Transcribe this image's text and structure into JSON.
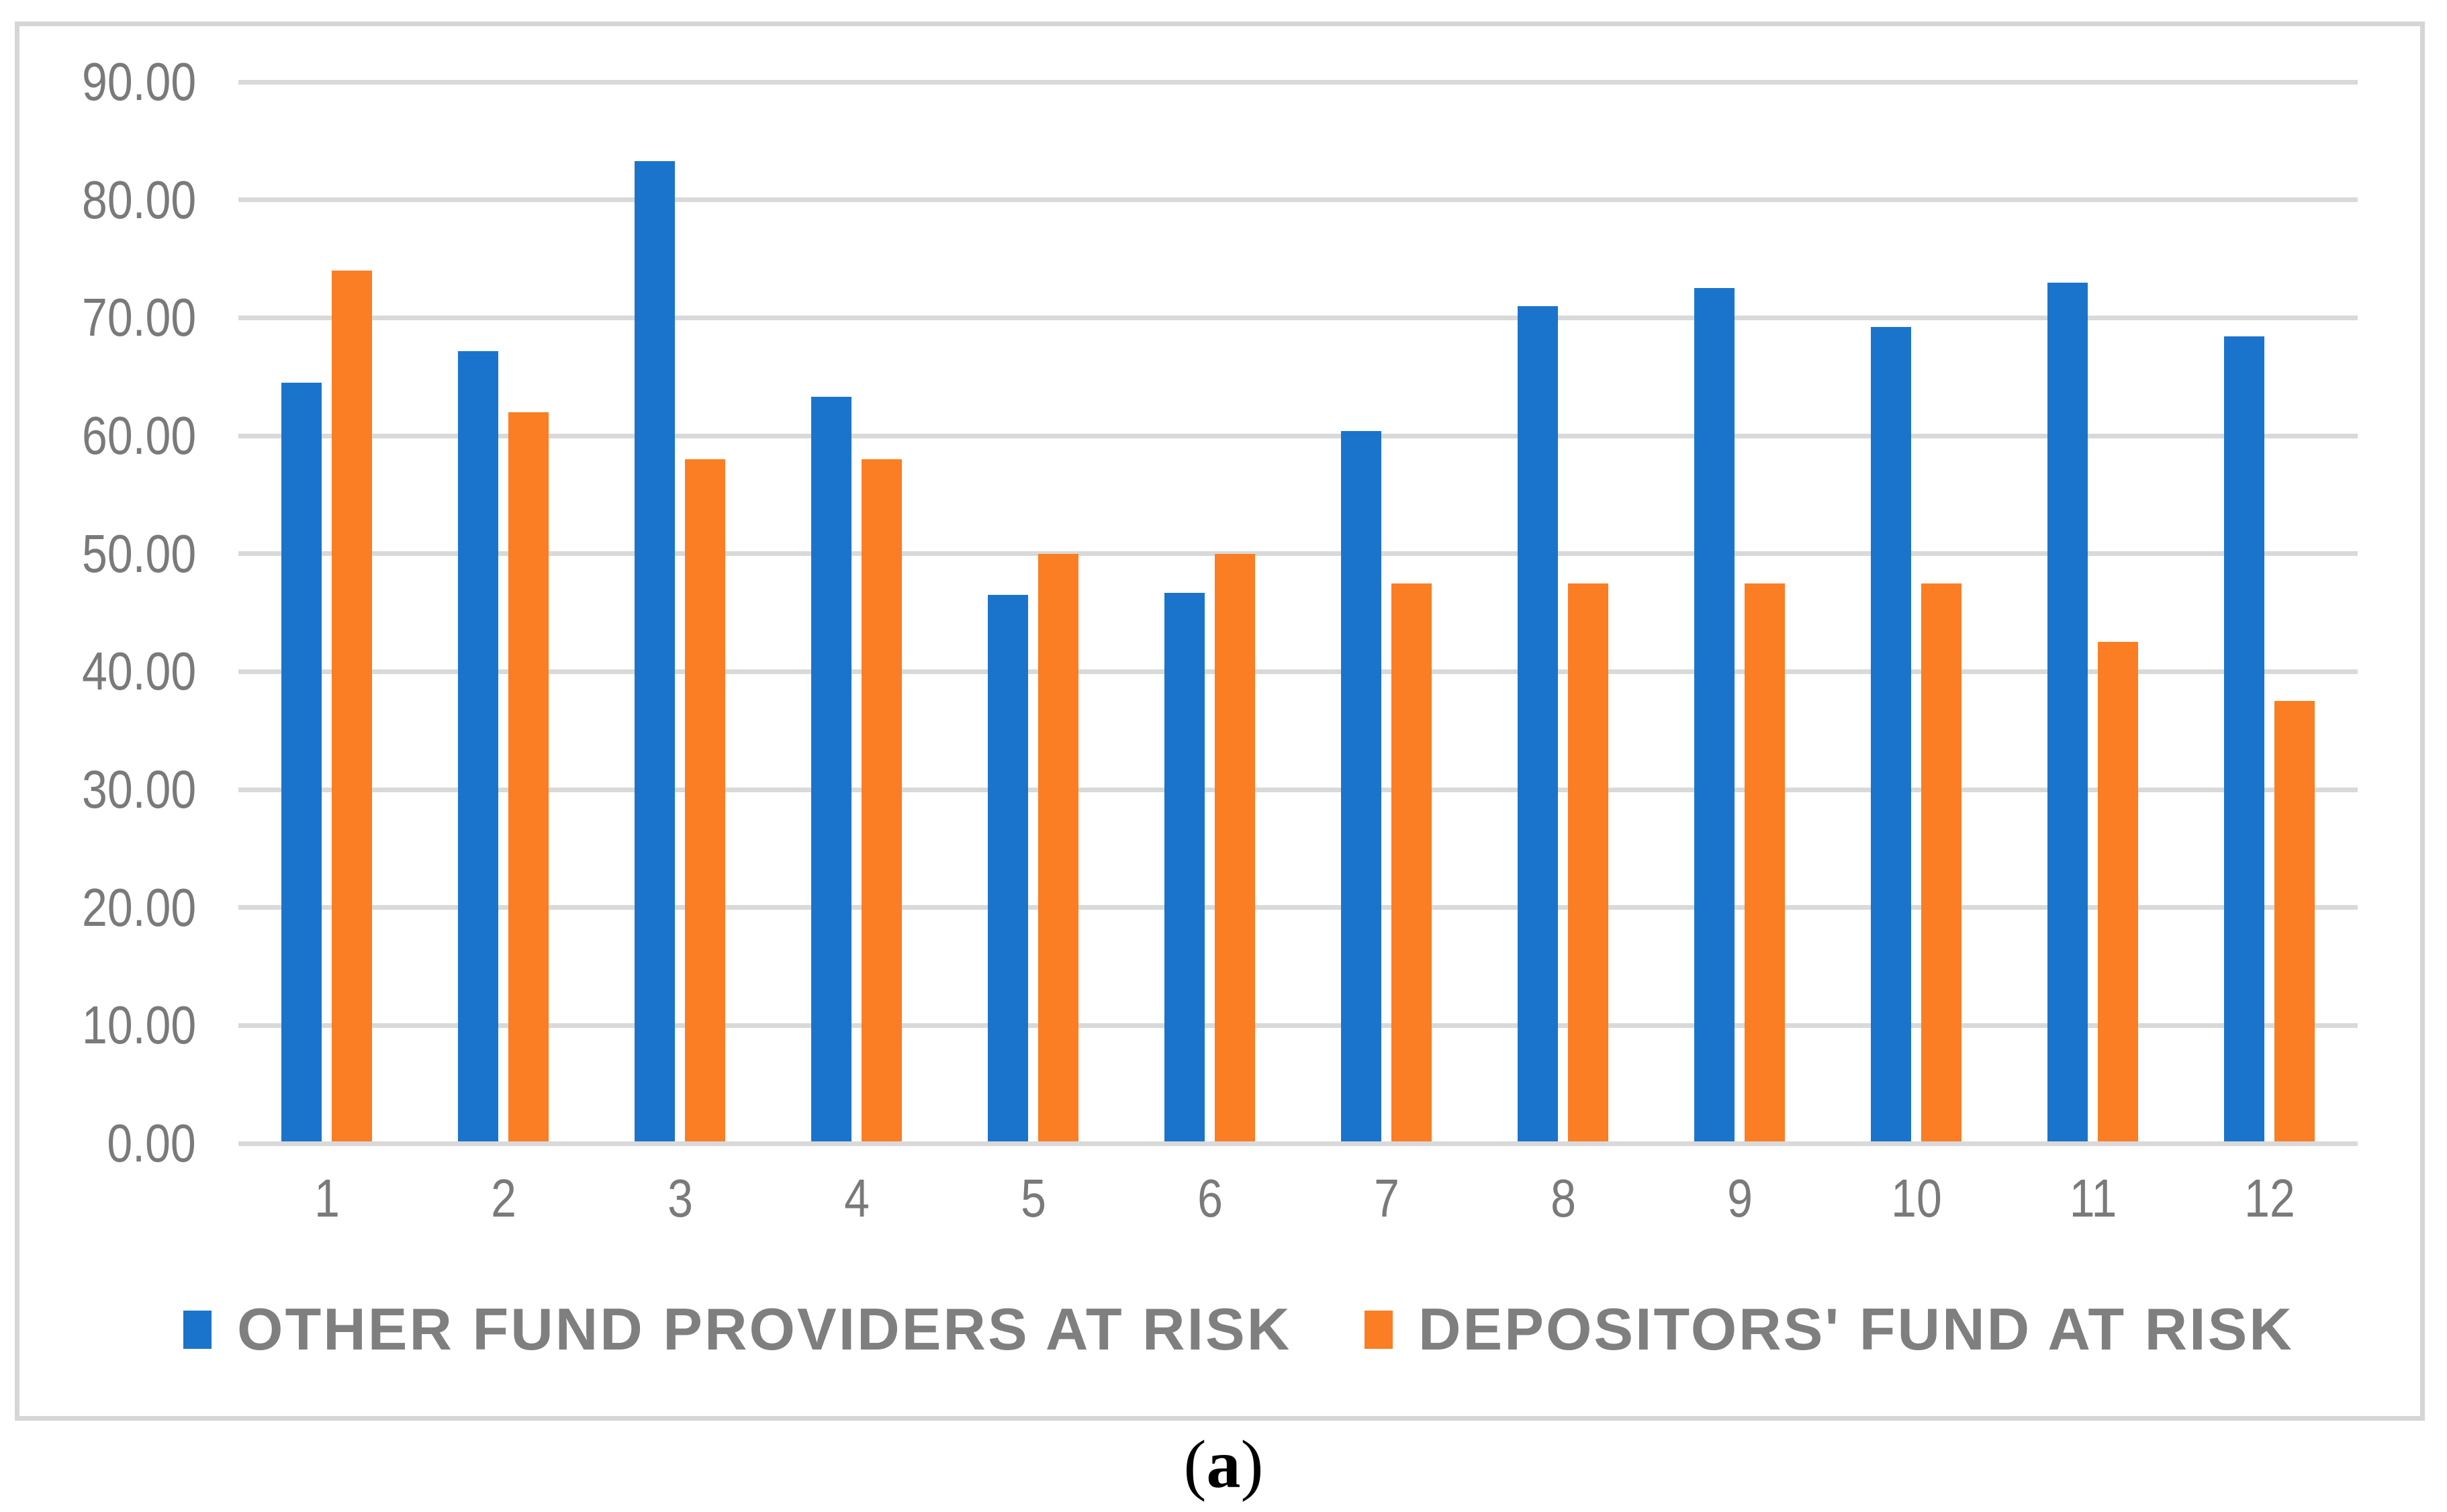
{
  "figure": {
    "caption": {
      "open": "(",
      "letter": "a",
      "close": ")"
    }
  },
  "chart_data": {
    "type": "bar",
    "title": "",
    "xlabel": "",
    "ylabel": "",
    "categories": [
      "1",
      "2",
      "3",
      "4",
      "5",
      "6",
      "7",
      "8",
      "9",
      "10",
      "11",
      "12"
    ],
    "series": [
      {
        "name": "OTHER FUND PROVIDERS AT RISK",
        "color": "#1b74cb",
        "values": [
          64.5,
          67.2,
          83.3,
          63.3,
          46.5,
          46.7,
          60.4,
          71.0,
          72.5,
          69.2,
          73.0,
          68.4
        ]
      },
      {
        "name": "DEPOSITORS' FUND AT RISK",
        "color": "#fb7d24",
        "values": [
          74.0,
          62.0,
          58.0,
          58.0,
          50.0,
          50.0,
          47.5,
          47.5,
          47.5,
          47.5,
          42.5,
          37.5
        ]
      }
    ],
    "ylim": [
      0,
      90
    ],
    "ytick_step": 10,
    "y_tick_labels": [
      "0.00",
      "10.00",
      "20.00",
      "30.00",
      "40.00",
      "50.00",
      "60.00",
      "70.00",
      "80.00",
      "90.00"
    ],
    "grid": true,
    "legend_position": "bottom",
    "colors": {
      "gridline": "#d9d9d9",
      "axis_text": "#7a7a7a",
      "legend_text": "#7f7f7f",
      "frame_border": "#d6d6d6",
      "background": "#ffffff"
    }
  }
}
